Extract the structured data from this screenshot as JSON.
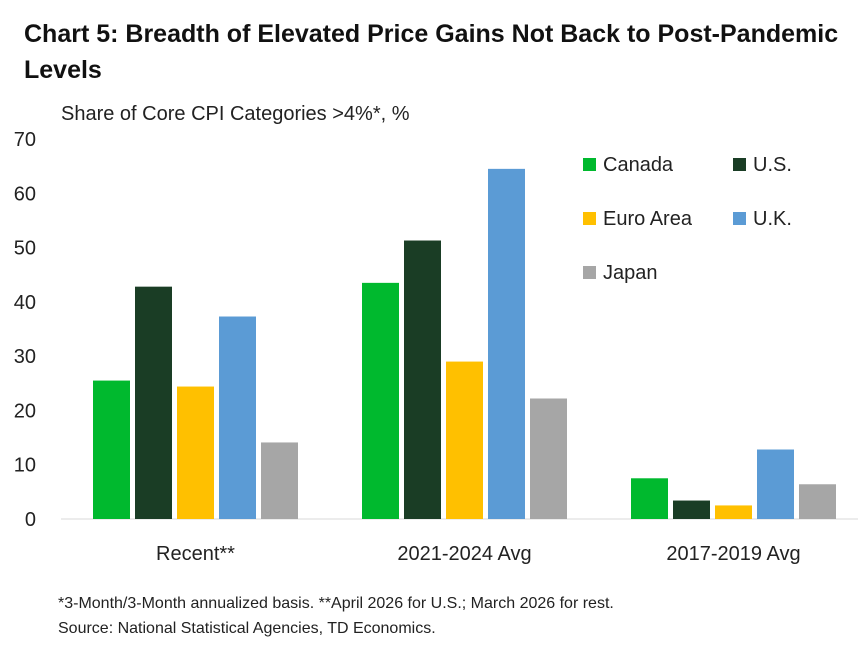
{
  "title": "Chart 5: Breadth of Elevated Price Gains Not Back to Post-Pandemic Levels",
  "subtitle": "Share of Core CPI Categories >4%*, %",
  "footnotes": [
    "*3-Month/3-Month  annualized basis. **April 2026 for U.S.; March 2026 for rest.",
    "Source: National Statistical Agencies, TD Economics."
  ],
  "chart_data": {
    "type": "bar",
    "title": "Chart 5: Breadth of Elevated Price Gains Not Back to Post-Pandemic Levels",
    "subtitle": "Share of Core CPI Categories >4%*, %",
    "categories": [
      "Recent**",
      "2021-2024 Avg",
      "2017-2019 Avg"
    ],
    "series": [
      {
        "name": "Canada",
        "color": "#00b92e",
        "values": [
          25.5,
          43.5,
          7.5
        ]
      },
      {
        "name": "U.S.",
        "color": "#1a3d25",
        "values": [
          42.8,
          51.3,
          3.4
        ]
      },
      {
        "name": "Euro Area",
        "color": "#ffc000",
        "values": [
          24.4,
          29.0,
          2.5
        ]
      },
      {
        "name": "U.K.",
        "color": "#5b9bd5",
        "values": [
          37.3,
          64.5,
          12.8
        ]
      },
      {
        "name": "Japan",
        "color": "#a6a6a6",
        "values": [
          14.1,
          22.2,
          6.4
        ]
      }
    ],
    "ylim": [
      0,
      70
    ],
    "yticks": [
      0,
      10,
      20,
      30,
      40,
      50,
      60,
      70
    ],
    "xlabel": "",
    "ylabel": "",
    "grid": false,
    "legend_position": "top-right"
  }
}
